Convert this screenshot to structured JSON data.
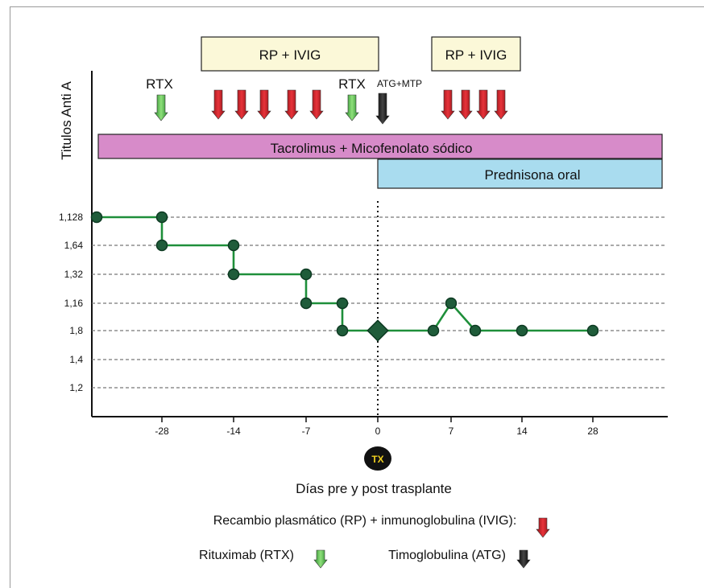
{
  "chart_data": {
    "type": "line",
    "ylabel": "Titulos Anti A",
    "xlabel": "Días pre y post trasplante",
    "x_ticks": [
      {
        "value": -28,
        "label": "-28"
      },
      {
        "value": -14,
        "label": "-14"
      },
      {
        "value": -7,
        "label": "-7"
      },
      {
        "value": 0,
        "label": "0"
      },
      {
        "value": 7,
        "label": "7"
      },
      {
        "value": 14,
        "label": "14"
      },
      {
        "value": 28,
        "label": "28"
      }
    ],
    "x_scale_note": "tick positions are non-linear (categorical spacing)",
    "y_levels": [
      "1,128",
      "1,64",
      "1,32",
      "1,16",
      "1,8",
      "1,4",
      "1,2"
    ],
    "y_grid": "dashed",
    "series": [
      {
        "color": "#1e8f3a",
        "points": [
          {
            "x": "start",
            "y": "1,128"
          },
          {
            "x": -28,
            "y": "1,128"
          },
          {
            "x": -28,
            "y": "1,64"
          },
          {
            "x": -14,
            "y": "1,64"
          },
          {
            "x": -14,
            "y": "1,32"
          },
          {
            "x": -7,
            "y": "1,32"
          },
          {
            "x": -7,
            "y": "1,16"
          },
          {
            "x": -3,
            "y": "1,16"
          },
          {
            "x": -3,
            "y": "1,8"
          },
          {
            "x": 0,
            "y": "1,8"
          },
          {
            "x": 5,
            "y": "1,8"
          },
          {
            "x": 7,
            "y": "1,16"
          },
          {
            "x": 9,
            "y": "1,8"
          },
          {
            "x": 14,
            "y": "1,8"
          },
          {
            "x": 28,
            "y": "1,8"
          }
        ]
      }
    ],
    "transplant_marker": {
      "x": 0,
      "label": "TX"
    },
    "treatment_bars": [
      {
        "label": "Tacrolimus + Micofenolato sódico",
        "color": "#d78bc9"
      },
      {
        "label": "Prednisona oral",
        "color": "#a9dcef"
      }
    ],
    "procedure_boxes": [
      {
        "label": "RP + IVIG"
      },
      {
        "label": "RP + IVIG"
      }
    ],
    "top_labels": {
      "rtx": "RTX",
      "atg": "ATG+MTP"
    },
    "legend": {
      "rp_ivig": "Recambio plasmático (RP) + inmunoglobulina (IVIG):",
      "rtx": "Rituximab (RTX)",
      "atg": "Timoglobulina (ATG)"
    },
    "colors": {
      "rp_arrow": "#d9282f",
      "rtx_arrow": "#4cb848",
      "atg_arrow": "#111111",
      "line": "#1e8f3a",
      "marker": "#1f5c3a"
    }
  }
}
